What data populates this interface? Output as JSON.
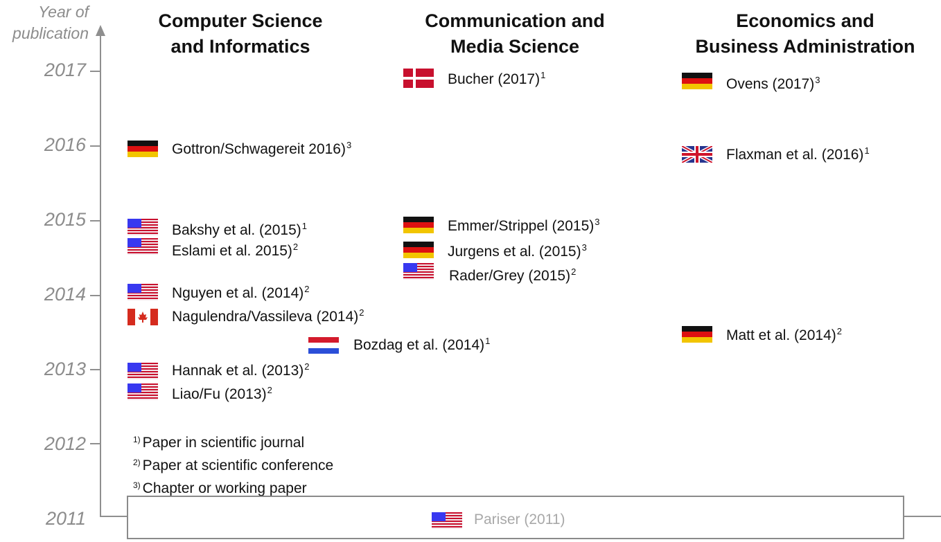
{
  "axis": {
    "title_line1": "Year of",
    "title_line2": "publication",
    "years": [
      "2017",
      "2016",
      "2015",
      "2014",
      "2013",
      "2012",
      "2011"
    ]
  },
  "columns": [
    {
      "line1": "Computer Science",
      "line2": "and Informatics"
    },
    {
      "line1": "Communication and",
      "line2": "Media Science"
    },
    {
      "line1": "Economics and",
      "line2": "Business Administration"
    }
  ],
  "entries": [
    {
      "flag": "de",
      "label": "Gottron/Schwagereit 2016)",
      "note": "3"
    },
    {
      "flag": "us",
      "label": "Bakshy et al. (2015)",
      "note": "1"
    },
    {
      "flag": "us",
      "label": "Eslami et al. 2015)",
      "note": "2"
    },
    {
      "flag": "us",
      "label": "Nguyen et al. (2014)",
      "note": "2"
    },
    {
      "flag": "ca",
      "label": "Nagulendra/Vassileva (2014)",
      "note": "2"
    },
    {
      "flag": "us",
      "label": "Hannak et al. (2013)",
      "note": "2"
    },
    {
      "flag": "us",
      "label": "Liao/Fu (2013)",
      "note": "2"
    },
    {
      "flag": "nl",
      "label": "Bozdag et al. (2014)",
      "note": "1"
    },
    {
      "flag": "dk",
      "label": "Bucher (2017)",
      "note": "1"
    },
    {
      "flag": "de",
      "label": "Emmer/Strippel (2015)",
      "note": "3"
    },
    {
      "flag": "de",
      "label": "Jurgens et al. (2015)",
      "note": "3"
    },
    {
      "flag": "us",
      "label": "Rader/Grey (2015)",
      "note": "2"
    },
    {
      "flag": "de",
      "label": "Ovens (2017)",
      "note": "3"
    },
    {
      "flag": "gb",
      "label": "Flaxman et al. (2016)",
      "note": "1"
    },
    {
      "flag": "de",
      "label": "Matt et al. (2014)",
      "note": "2"
    }
  ],
  "legend": [
    {
      "num": "1)",
      "text": "Paper in scientific journal"
    },
    {
      "num": "2)",
      "text": "Paper at scientific conference"
    },
    {
      "num": "3)",
      "text": "Chapter or working paper"
    }
  ],
  "footer": {
    "flag": "us",
    "label": "Pariser (2011)"
  },
  "colors": {
    "axis": "#8f8f8f",
    "year_text": "#8c8c8c",
    "footer_text": "#a8a8a8",
    "footer_border": "#8a8a8a"
  }
}
